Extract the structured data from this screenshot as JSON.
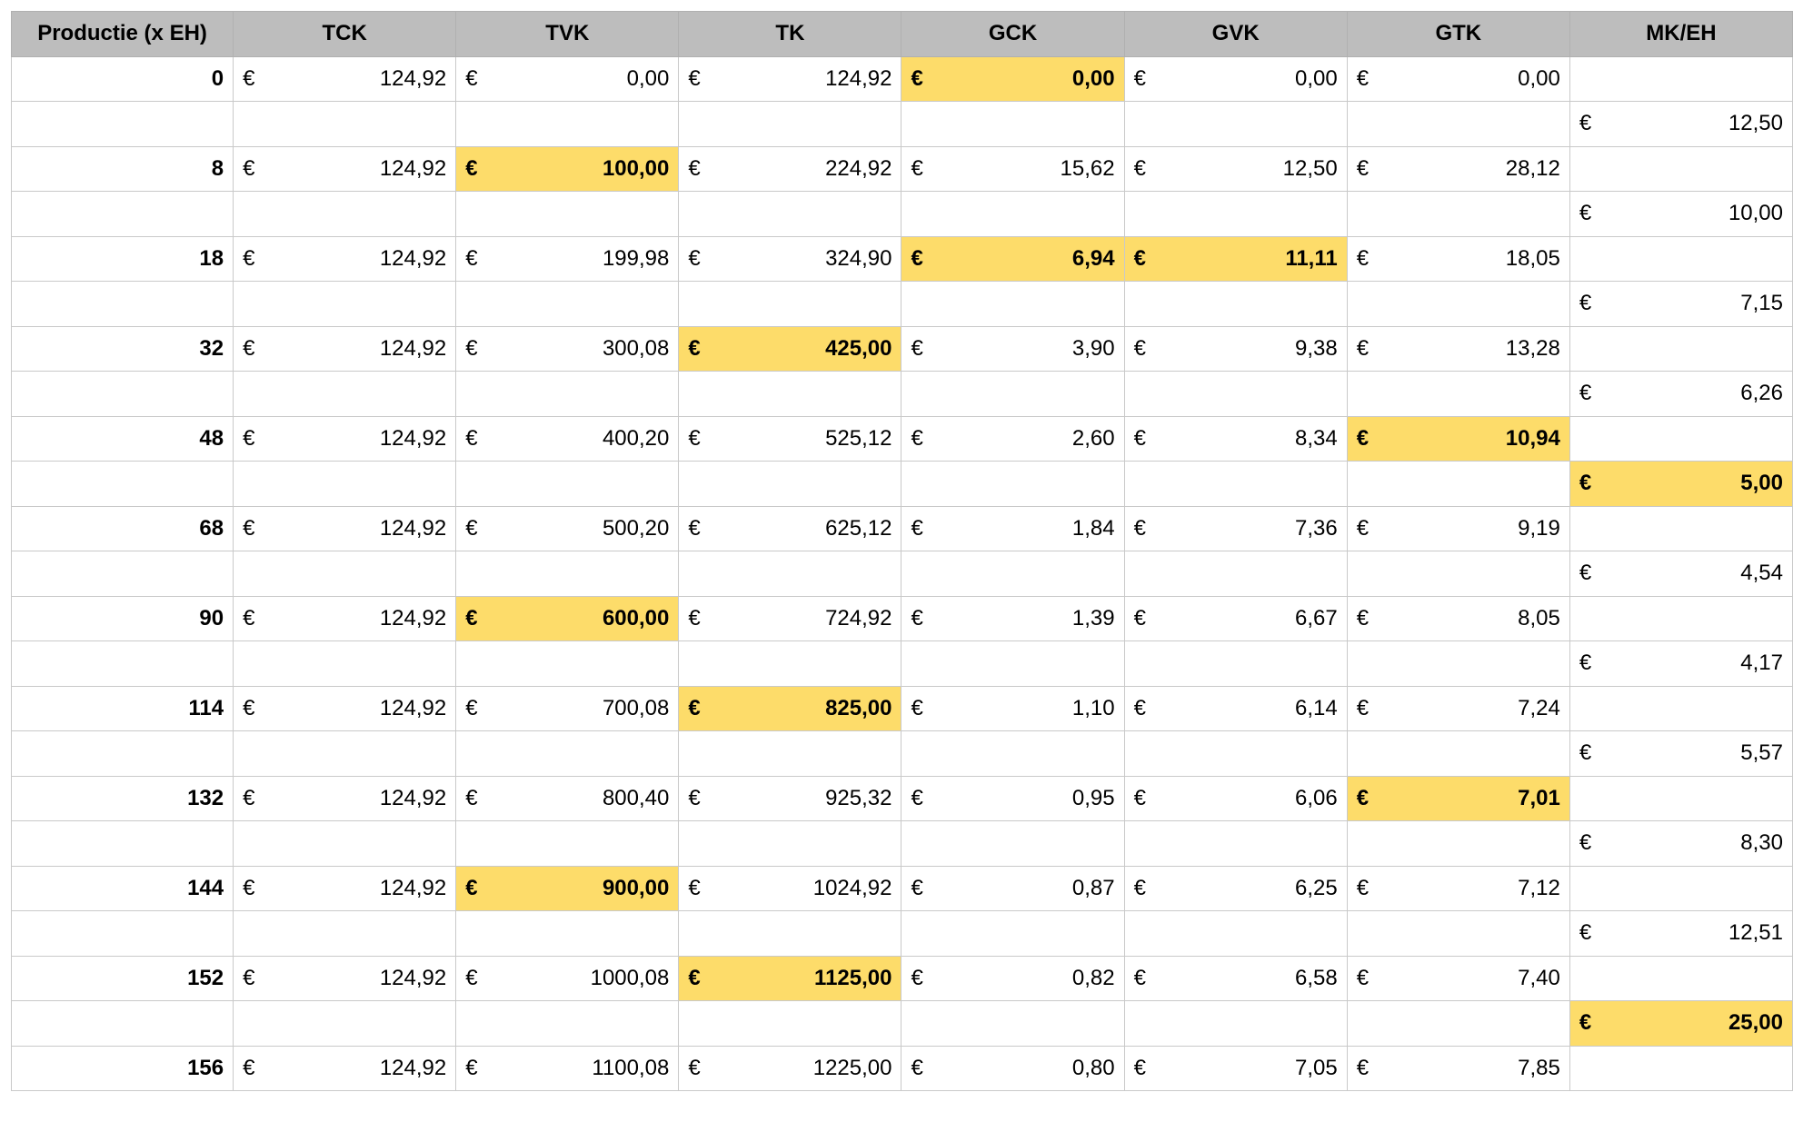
{
  "colors": {
    "header_bg": "#bdbdbd",
    "highlight": "#fddc6a",
    "grid": "#c9c9c9"
  },
  "currency_symbol": "€",
  "headers": [
    "Productie (x EH)",
    "TCK",
    "TVK",
    "TK",
    "GCK",
    "GVK",
    "GTK",
    "MK/EH"
  ],
  "rows": [
    {
      "productie": "0",
      "tck": "124,92",
      "tvk": "0,00",
      "tk": "124,92",
      "gck": "0,00",
      "gvk": "0,00",
      "gtk": "0,00",
      "highlight": [
        "gck"
      ]
    },
    {
      "mk": "12,50"
    },
    {
      "productie": "8",
      "tck": "124,92",
      "tvk": "100,00",
      "tk": "224,92",
      "gck": "15,62",
      "gvk": "12,50",
      "gtk": "28,12",
      "highlight": [
        "tvk"
      ]
    },
    {
      "mk": "10,00"
    },
    {
      "productie": "18",
      "tck": "124,92",
      "tvk": "199,98",
      "tk": "324,90",
      "gck": "6,94",
      "gvk": "11,11",
      "gtk": "18,05",
      "highlight": [
        "gck",
        "gvk"
      ]
    },
    {
      "mk": "7,15"
    },
    {
      "productie": "32",
      "tck": "124,92",
      "tvk": "300,08",
      "tk": "425,00",
      "gck": "3,90",
      "gvk": "9,38",
      "gtk": "13,28",
      "highlight": [
        "tk"
      ]
    },
    {
      "mk": "6,26"
    },
    {
      "productie": "48",
      "tck": "124,92",
      "tvk": "400,20",
      "tk": "525,12",
      "gck": "2,60",
      "gvk": "8,34",
      "gtk": "10,94",
      "highlight": [
        "gtk"
      ]
    },
    {
      "mk": "5,00",
      "highlight": [
        "mk"
      ]
    },
    {
      "productie": "68",
      "tck": "124,92",
      "tvk": "500,20",
      "tk": "625,12",
      "gck": "1,84",
      "gvk": "7,36",
      "gtk": "9,19"
    },
    {
      "mk": "4,54"
    },
    {
      "productie": "90",
      "tck": "124,92",
      "tvk": "600,00",
      "tk": "724,92",
      "gck": "1,39",
      "gvk": "6,67",
      "gtk": "8,05",
      "highlight": [
        "tvk"
      ]
    },
    {
      "mk": "4,17"
    },
    {
      "productie": "114",
      "tck": "124,92",
      "tvk": "700,08",
      "tk": "825,00",
      "gck": "1,10",
      "gvk": "6,14",
      "gtk": "7,24",
      "highlight": [
        "tk"
      ]
    },
    {
      "mk": "5,57"
    },
    {
      "productie": "132",
      "tck": "124,92",
      "tvk": "800,40",
      "tk": "925,32",
      "gck": "0,95",
      "gvk": "6,06",
      "gtk": "7,01",
      "highlight": [
        "gtk"
      ]
    },
    {
      "mk": "8,30"
    },
    {
      "productie": "144",
      "tck": "124,92",
      "tvk": "900,00",
      "tk": "1024,92",
      "gck": "0,87",
      "gvk": "6,25",
      "gtk": "7,12",
      "highlight": [
        "tvk"
      ]
    },
    {
      "mk": "12,51"
    },
    {
      "productie": "152",
      "tck": "124,92",
      "tvk": "1000,08",
      "tk": "1125,00",
      "gck": "0,82",
      "gvk": "6,58",
      "gtk": "7,40",
      "highlight": [
        "tk"
      ]
    },
    {
      "mk": "25,00",
      "highlight": [
        "mk"
      ]
    },
    {
      "productie": "156",
      "tck": "124,92",
      "tvk": "1100,08",
      "tk": "1225,00",
      "gck": "0,80",
      "gvk": "7,05",
      "gtk": "7,85"
    }
  ]
}
